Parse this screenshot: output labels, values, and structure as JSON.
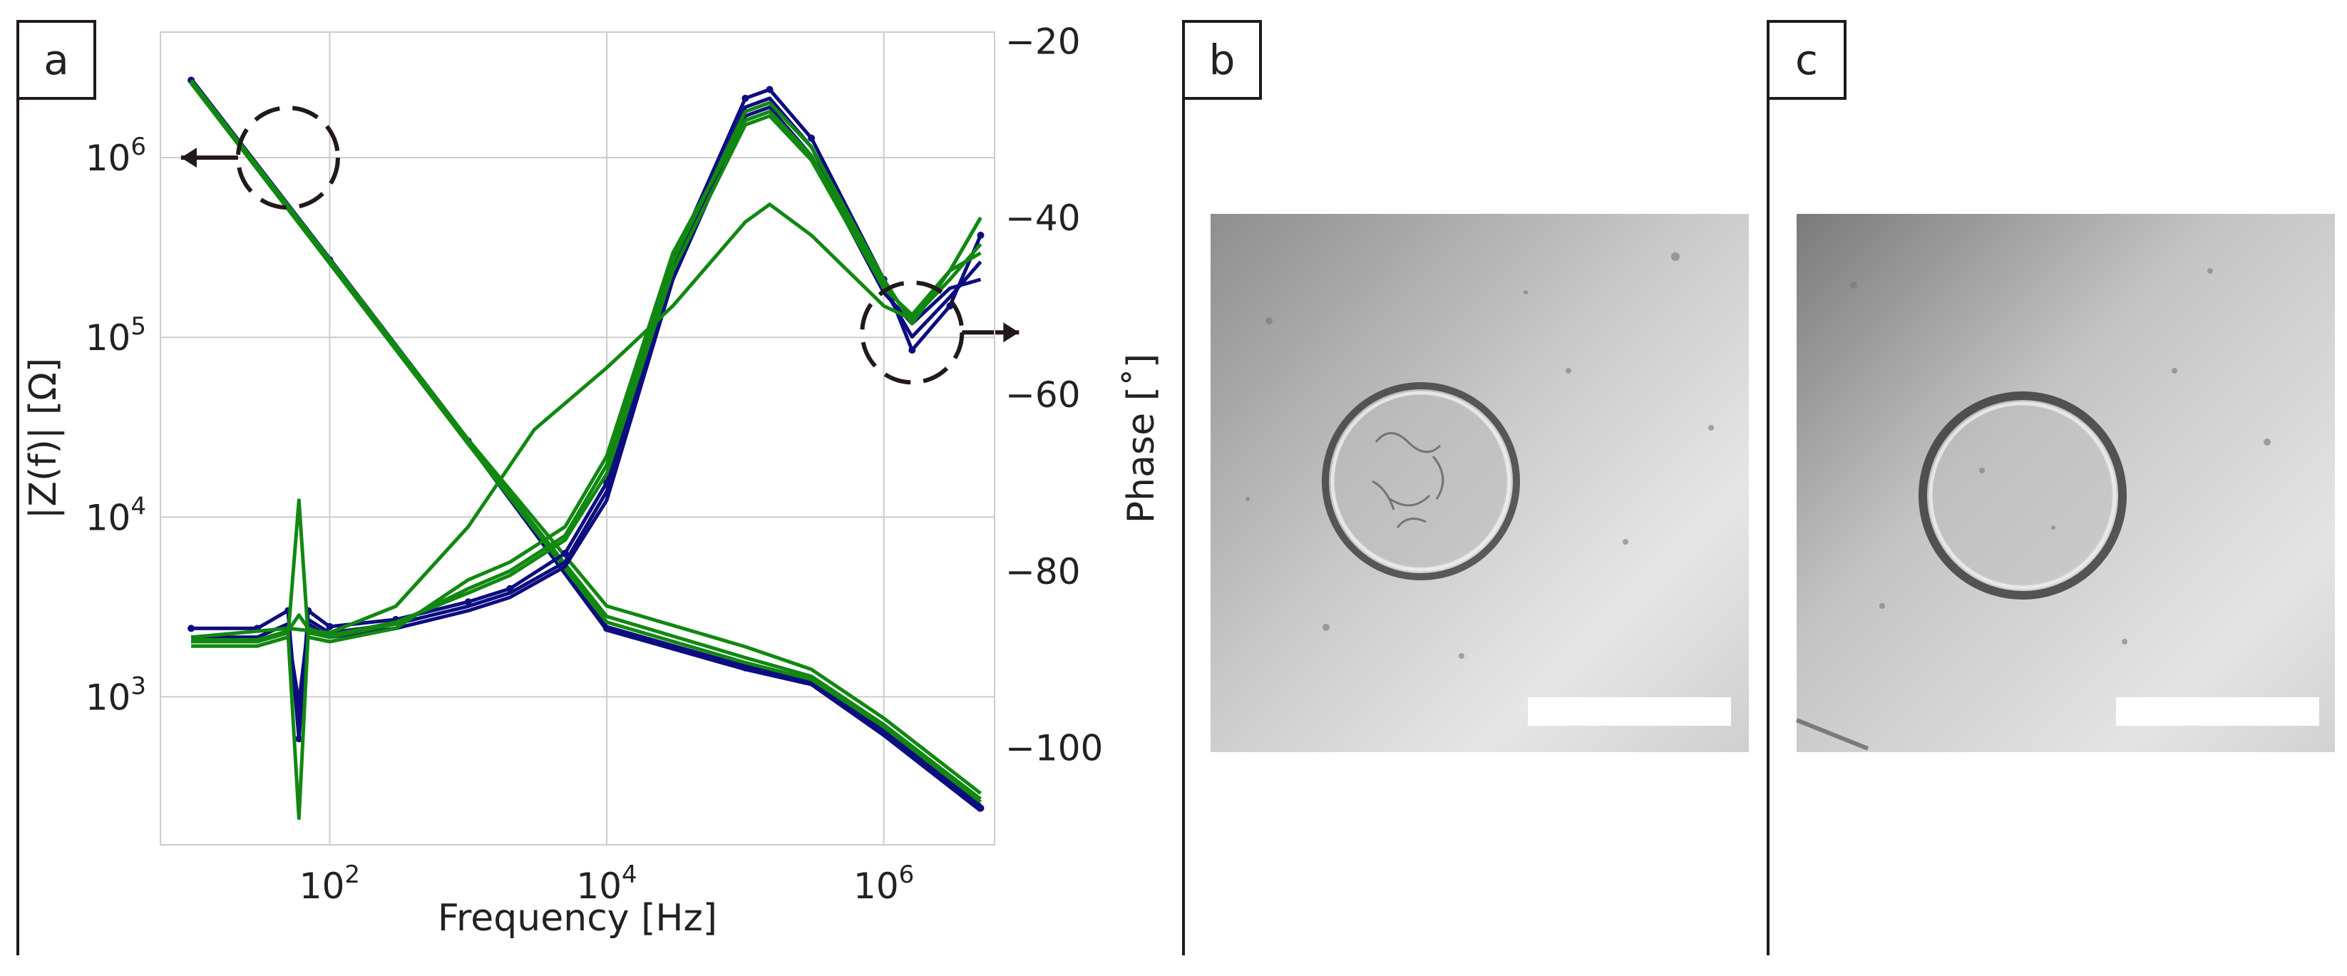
{
  "panels": {
    "a": "a",
    "b": "b",
    "c": "c"
  },
  "chart_data": {
    "type": "line",
    "xlabel": "Frequency [Hz]",
    "ylabel_left": "|Z(f)| [Ω]",
    "ylabel_right": "Phase [˚]",
    "x_scale": "log",
    "y_left_scale": "log",
    "xlim": [
      6,
      6300000
    ],
    "ylim_left": [
      150,
      5000000
    ],
    "ylim_right": [
      -111,
      -19
    ],
    "x_ticks": [
      {
        "value": 100,
        "base": "10",
        "exp": "2"
      },
      {
        "value": 10000,
        "base": "10",
        "exp": "4"
      },
      {
        "value": 1000000,
        "base": "10",
        "exp": "6"
      }
    ],
    "y_left_ticks": [
      {
        "value": 1000,
        "base": "10",
        "exp": "3"
      },
      {
        "value": 10000,
        "base": "10",
        "exp": "4"
      },
      {
        "value": 100000,
        "base": "10",
        "exp": "5"
      },
      {
        "value": 1000000,
        "base": "10",
        "exp": "6"
      }
    ],
    "y_right_ticks": [
      {
        "value": -20,
        "label": "−20"
      },
      {
        "value": -40,
        "label": "−40"
      },
      {
        "value": -60,
        "label": "−60"
      },
      {
        "value": -80,
        "label": "−80"
      },
      {
        "value": -100,
        "label": "−100"
      }
    ],
    "grid": true,
    "colors": {
      "blue": "#0d0d80",
      "green": "#118811",
      "grid": "#cccccc",
      "annotation": "#221a18"
    },
    "annotations": [
      {
        "name": "magnitude-axis-marker",
        "x": 50,
        "y": 1000000,
        "axis": "left",
        "arrow": "left"
      },
      {
        "name": "phase-axis-marker",
        "x": 1600000,
        "y": -53,
        "axis": "right",
        "arrow": "right"
      }
    ],
    "series": [
      {
        "name": "blue-1",
        "color": "#0d0d80",
        "axis": "left",
        "markers": true,
        "x": [
          10,
          100,
          1000,
          10000,
          100000,
          300000,
          1000000,
          5000000
        ],
        "y": [
          2700000,
          270000,
          26500,
          2400,
          1450,
          1200,
          630,
          240
        ]
      },
      {
        "name": "blue-2",
        "color": "#0d0d80",
        "axis": "left",
        "markers": false,
        "x": [
          10,
          100,
          1000,
          10000,
          100000,
          300000,
          1000000,
          5000000
        ],
        "y": [
          2600000,
          262000,
          25800,
          2350,
          1420,
          1170,
          610,
          232
        ]
      },
      {
        "name": "blue-3",
        "color": "#0d0d80",
        "axis": "left",
        "markers": false,
        "x": [
          10,
          100,
          1000,
          10000,
          100000,
          300000,
          1000000,
          5000000
        ],
        "y": [
          2750000,
          275000,
          27000,
          2450,
          1480,
          1230,
          650,
          248
        ]
      },
      {
        "name": "green-1",
        "color": "#118811",
        "axis": "left",
        "markers": false,
        "x": [
          10,
          100,
          1000,
          10000,
          100000,
          300000,
          1000000,
          5000000
        ],
        "y": [
          2650000,
          265000,
          26200,
          2800,
          1650,
          1300,
          700,
          270
        ]
      },
      {
        "name": "green-2",
        "color": "#118811",
        "axis": "left",
        "markers": false,
        "x": [
          10,
          100,
          1000,
          10000,
          100000,
          300000,
          1000000,
          5000000
        ],
        "y": [
          2700000,
          272000,
          27000,
          3200,
          1900,
          1420,
          760,
          290
        ]
      },
      {
        "name": "green-3",
        "color": "#118811",
        "axis": "left",
        "markers": false,
        "x": [
          10,
          100,
          1000,
          10000,
          100000,
          300000,
          1000000,
          5000000
        ],
        "y": [
          2600000,
          258000,
          25500,
          2600,
          1550,
          1250,
          680,
          260
        ]
      },
      {
        "name": "blue-phase-1",
        "color": "#0d0d80",
        "axis": "right",
        "markers": true,
        "x": [
          10,
          30,
          50,
          60,
          70,
          100,
          300,
          1000,
          2000,
          5000,
          10000,
          30000,
          100000,
          150000,
          300000,
          1000000,
          1600000,
          3000000,
          5000000
        ],
        "y": [
          -86.5,
          -86.5,
          -84.5,
          -99,
          -84.5,
          -86.3,
          -85.5,
          -83.5,
          -82,
          -78,
          -70,
          -45,
          -26.5,
          -25.5,
          -31,
          -47,
          -55,
          -50,
          -42
        ]
      },
      {
        "name": "blue-phase-2",
        "color": "#0d0d80",
        "axis": "right",
        "markers": false,
        "x": [
          10,
          30,
          50,
          60,
          70,
          100,
          300,
          1000,
          2000,
          5000,
          10000,
          30000,
          100000,
          150000,
          300000,
          1000000,
          1600000,
          3000000,
          5000000
        ],
        "y": [
          -87.5,
          -87.5,
          -86,
          -97,
          -85.5,
          -87,
          -86,
          -84,
          -82.5,
          -79,
          -71,
          -46,
          -27.5,
          -26.5,
          -32,
          -48,
          -53.5,
          -49,
          -45
        ]
      },
      {
        "name": "blue-phase-3",
        "color": "#0d0d80",
        "axis": "right",
        "markers": false,
        "x": [
          10,
          30,
          50,
          60,
          70,
          100,
          300,
          1000,
          2000,
          5000,
          10000,
          30000,
          100000,
          150000,
          300000,
          1000000,
          1600000,
          3000000,
          5000000
        ],
        "y": [
          -88,
          -88,
          -87,
          -95,
          -86,
          -87.5,
          -86.5,
          -84.5,
          -83,
          -79.5,
          -72,
          -47,
          -28.5,
          -27.5,
          -33,
          -48.5,
          -52,
          -48,
          -47
        ]
      },
      {
        "name": "green-phase-1",
        "color": "#118811",
        "axis": "right",
        "markers": false,
        "x": [
          10,
          30,
          50,
          60,
          70,
          100,
          300,
          1000,
          2000,
          5000,
          10000,
          30000,
          100000,
          150000,
          300000,
          1000000,
          1600000,
          3000000,
          5000000
        ],
        "y": [
          -88,
          -88,
          -87,
          -108,
          -87,
          -87.5,
          -86,
          -82,
          -80,
          -76,
          -68,
          -45,
          -28,
          -27,
          -32,
          -47,
          -52,
          -46,
          -40
        ]
      },
      {
        "name": "green-phase-2",
        "color": "#118811",
        "axis": "right",
        "markers": false,
        "x": [
          10,
          30,
          50,
          60,
          70,
          100,
          300,
          1000,
          2000,
          5000,
          10000,
          30000,
          100000,
          150000,
          300000,
          1000000,
          1600000,
          3000000,
          5000000
        ],
        "y": [
          -88.5,
          -88.5,
          -87.5,
          -72,
          -87.5,
          -88,
          -86.5,
          -81,
          -79,
          -75,
          -67,
          -44,
          -29,
          -28,
          -33,
          -47.5,
          -51.5,
          -47,
          -43
        ]
      },
      {
        "name": "green-phase-3",
        "color": "#118811",
        "axis": "right",
        "markers": false,
        "x": [
          10,
          30,
          50,
          60,
          70,
          100,
          300,
          1000,
          2000,
          5000,
          10000,
          30000,
          100000,
          150000,
          300000,
          1000000,
          1600000,
          3000000,
          5000000
        ],
        "y": [
          -87.8,
          -87.8,
          -86.8,
          -85,
          -86.5,
          -87.3,
          -85.8,
          -82.5,
          -80.5,
          -76.5,
          -69,
          -46,
          -29.5,
          -28.5,
          -33.5,
          -48,
          -51,
          -46,
          -44
        ]
      },
      {
        "name": "green-phase-4",
        "color": "#118811",
        "axis": "right",
        "markers": false,
        "x": [
          10,
          50,
          100,
          300,
          1000,
          3000,
          10000,
          30000,
          100000,
          150000,
          300000,
          1000000,
          1600000,
          3000000,
          5000000
        ],
        "y": [
          -87.5,
          -86.5,
          -87,
          -84,
          -75,
          -64,
          -57,
          -50,
          -40.5,
          -38.5,
          -42,
          -50,
          -51.5,
          -46,
          -40
        ]
      }
    ]
  }
}
